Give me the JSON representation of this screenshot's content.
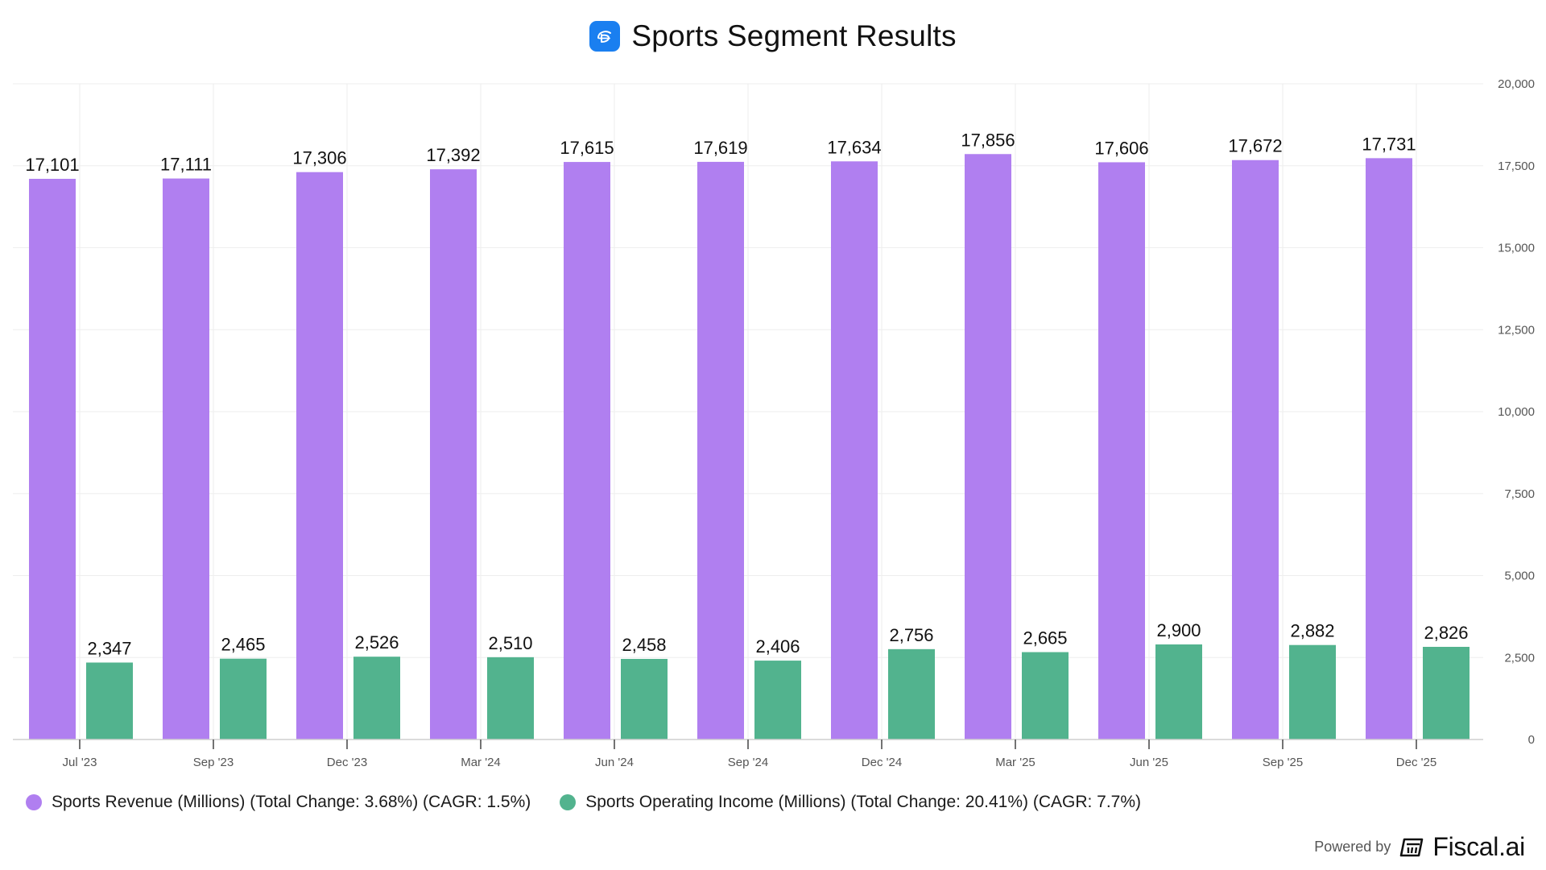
{
  "header": {
    "title": "Sports Segment Results",
    "logo_icon": "disney-plus-icon"
  },
  "colors": {
    "revenue": "#b07ff0",
    "income": "#52b38e",
    "grid": "#eeeeee",
    "axis": "#cfcfcf",
    "tick_text": "#555555",
    "logo_bg": "#1a7ff0"
  },
  "chart_data": {
    "type": "bar",
    "title": "Sports Segment Results",
    "categories": [
      "Jul '23",
      "Sep '23",
      "Dec '23",
      "Mar '24",
      "Jun '24",
      "Sep '24",
      "Dec '24",
      "Mar '25",
      "Jun '25",
      "Sep '25",
      "Dec '25"
    ],
    "series": [
      {
        "name": "Sports Revenue (Millions)",
        "values": [
          17101,
          17111,
          17306,
          17392,
          17615,
          17619,
          17634,
          17856,
          17606,
          17672,
          17731
        ],
        "labels": [
          "17,101",
          "17,111",
          "17,306",
          "17,392",
          "17,615",
          "17,619",
          "17,634",
          "17,856",
          "17,606",
          "17,672",
          "17,731"
        ]
      },
      {
        "name": "Sports Operating Income (Millions)",
        "values": [
          2347,
          2465,
          2526,
          2510,
          2458,
          2406,
          2756,
          2665,
          2900,
          2882,
          2826
        ],
        "labels": [
          "2,347",
          "2,465",
          "2,526",
          "2,510",
          "2,458",
          "2,406",
          "2,756",
          "2,665",
          "2,900",
          "2,882",
          "2,826"
        ]
      }
    ],
    "y_ticks": [
      0,
      2500,
      5000,
      7500,
      10000,
      12500,
      15000,
      17500,
      20000
    ],
    "y_tick_labels": [
      "0",
      "2,500",
      "5,000",
      "7,500",
      "10,000",
      "12,500",
      "15,000",
      "17,500",
      "20,000"
    ],
    "ylim": [
      0,
      20000
    ],
    "xlabel": "",
    "ylabel": "",
    "grid": true,
    "legend_position": "bottom-left"
  },
  "legend": {
    "revenue_label": "Sports Revenue (Millions) (Total Change: 3.68%) (CAGR: 1.5%)",
    "income_label": "Sports Operating Income (Millions) (Total Change: 20.41%) (CAGR: 7.7%)"
  },
  "footer": {
    "powered_by": "Powered by",
    "brand": "Fiscal.ai",
    "brand_icon": "fiscal-logo-icon"
  }
}
